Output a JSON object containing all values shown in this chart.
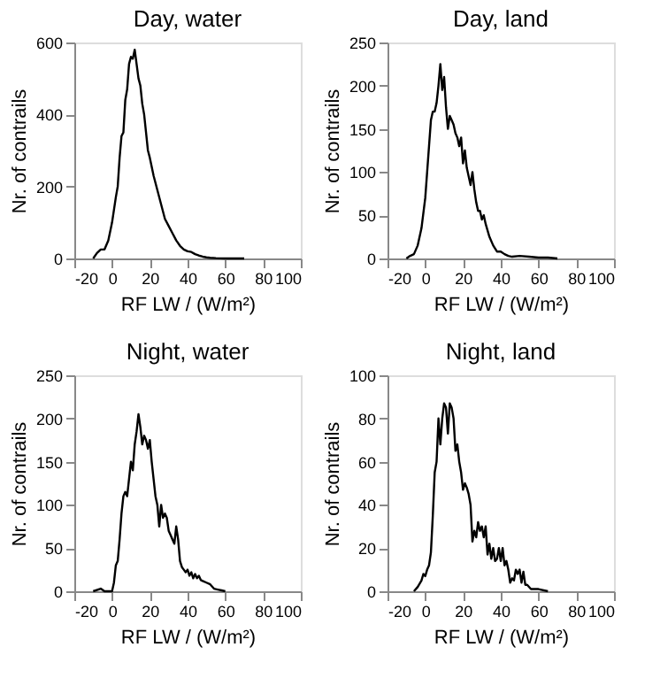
{
  "chart_data": [
    {
      "type": "line",
      "title": "Day, water",
      "xlabel": "RF LW / (W/m²)",
      "ylabel": "Nr. of contrails",
      "xlim": [
        -20,
        100
      ],
      "xticks": [
        -20,
        0,
        20,
        40,
        60,
        80,
        100
      ],
      "ylim": [
        0,
        600
      ],
      "yticks": [
        0,
        200,
        400,
        600
      ],
      "grid": false,
      "series": [
        {
          "color": "#000000",
          "x": [
            -10,
            -8,
            -6,
            -4,
            -2,
            0,
            2,
            3,
            4,
            5,
            6,
            7,
            8,
            9,
            10,
            11,
            12,
            13,
            14,
            15,
            16,
            17,
            18,
            19,
            20,
            22,
            24,
            26,
            28,
            30,
            32,
            34,
            36,
            38,
            40,
            42,
            44,
            46,
            48,
            50,
            52,
            55,
            60,
            65,
            70
          ],
          "values": [
            0,
            15,
            25,
            25,
            50,
            100,
            170,
            200,
            280,
            340,
            350,
            440,
            470,
            540,
            560,
            555,
            580,
            540,
            500,
            480,
            430,
            400,
            350,
            300,
            280,
            230,
            190,
            150,
            110,
            90,
            70,
            50,
            35,
            25,
            20,
            18,
            12,
            8,
            5,
            3,
            2,
            1,
            0,
            0,
            0
          ]
        }
      ]
    },
    {
      "type": "line",
      "title": "Day, land",
      "xlabel": "RF LW / (W/m²)",
      "ylabel": "Nr. of contrails",
      "xlim": [
        -20,
        100
      ],
      "xticks": [
        -20,
        0,
        20,
        40,
        60,
        80,
        100
      ],
      "ylim": [
        0,
        250
      ],
      "yticks": [
        0,
        50,
        100,
        150,
        200,
        250
      ],
      "grid": false,
      "series": [
        {
          "color": "#000000",
          "x": [
            -10,
            -8,
            -6,
            -4,
            -2,
            0,
            1,
            2,
            3,
            4,
            5,
            6,
            7,
            8,
            9,
            10,
            11,
            12,
            13,
            14,
            15,
            16,
            17,
            18,
            19,
            20,
            21,
            22,
            23,
            24,
            25,
            26,
            27,
            28,
            29,
            30,
            31,
            32,
            34,
            36,
            38,
            40,
            42,
            44,
            46,
            50,
            55,
            60,
            65,
            70
          ],
          "values": [
            0,
            3,
            5,
            15,
            35,
            70,
            100,
            130,
            160,
            170,
            170,
            180,
            200,
            225,
            195,
            210,
            175,
            150,
            165,
            160,
            155,
            145,
            140,
            130,
            140,
            110,
            125,
            105,
            95,
            85,
            100,
            80,
            65,
            55,
            55,
            45,
            50,
            40,
            25,
            15,
            8,
            8,
            5,
            3,
            2,
            3,
            2,
            1,
            1,
            0
          ]
        }
      ]
    },
    {
      "type": "line",
      "title": "Night, water",
      "xlabel": "RF LW / (W/m²)",
      "ylabel": "Nr. of contrails",
      "xlim": [
        -20,
        100
      ],
      "xticks": [
        -20,
        0,
        20,
        40,
        60,
        80,
        100
      ],
      "ylim": [
        0,
        250
      ],
      "yticks": [
        0,
        50,
        100,
        150,
        200,
        250
      ],
      "grid": false,
      "series": [
        {
          "color": "#000000",
          "x": [
            -10,
            -6,
            -4,
            0,
            1,
            2,
            3,
            4,
            5,
            6,
            7,
            8,
            9,
            10,
            11,
            12,
            13,
            14,
            15,
            16,
            17,
            18,
            19,
            20,
            21,
            22,
            23,
            24,
            25,
            26,
            27,
            28,
            29,
            30,
            31,
            32,
            33,
            34,
            35,
            36,
            37,
            38,
            39,
            40,
            41,
            42,
            43,
            44,
            45,
            46,
            47,
            48,
            50,
            52,
            54,
            56,
            58,
            60
          ],
          "values": [
            0,
            3,
            0,
            0,
            10,
            30,
            35,
            60,
            90,
            110,
            115,
            110,
            130,
            150,
            140,
            170,
            185,
            205,
            190,
            170,
            180,
            175,
            165,
            175,
            150,
            130,
            110,
            100,
            75,
            100,
            85,
            90,
            85,
            70,
            65,
            60,
            55,
            75,
            60,
            35,
            28,
            25,
            22,
            25,
            18,
            22,
            15,
            20,
            15,
            18,
            13,
            12,
            10,
            8,
            3,
            2,
            1,
            0
          ]
        }
      ]
    },
    {
      "type": "line",
      "title": "Night, land",
      "xlabel": "RF LW / (W/m²)",
      "ylabel": "Nr. of contrails",
      "xlim": [
        -20,
        100
      ],
      "xticks": [
        -20,
        0,
        20,
        40,
        60,
        80,
        100
      ],
      "ylim": [
        0,
        100
      ],
      "yticks": [
        0,
        20,
        40,
        60,
        80,
        100
      ],
      "grid": false,
      "series": [
        {
          "color": "#000000",
          "x": [
            -6,
            -4,
            -2,
            -1,
            0,
            1,
            2,
            3,
            4,
            5,
            6,
            7,
            8,
            9,
            10,
            11,
            12,
            13,
            14,
            15,
            16,
            17,
            18,
            19,
            20,
            21,
            22,
            23,
            24,
            25,
            26,
            27,
            28,
            29,
            30,
            31,
            32,
            33,
            34,
            35,
            36,
            37,
            38,
            39,
            40,
            41,
            42,
            43,
            44,
            45,
            46,
            47,
            48,
            49,
            50,
            51,
            52,
            53,
            54,
            56,
            60,
            65
          ],
          "values": [
            0,
            2,
            5,
            8,
            7,
            10,
            12,
            18,
            35,
            55,
            60,
            80,
            68,
            80,
            87,
            85,
            73,
            87,
            85,
            80,
            65,
            68,
            60,
            55,
            47,
            50,
            48,
            45,
            40,
            23,
            28,
            25,
            32,
            28,
            30,
            25,
            30,
            17,
            22,
            15,
            20,
            14,
            15,
            20,
            14,
            20,
            12,
            14,
            10,
            4,
            6,
            5,
            10,
            8,
            10,
            4,
            9,
            3,
            3,
            1,
            1,
            0
          ]
        }
      ]
    }
  ]
}
